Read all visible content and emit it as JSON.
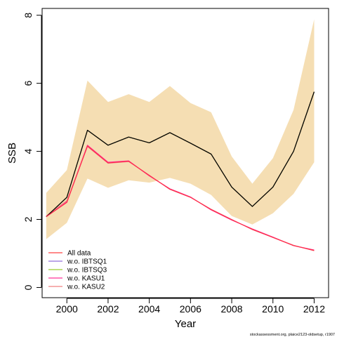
{
  "chart_data": {
    "type": "line",
    "xlabel": "Year",
    "ylabel": "SSB",
    "xlim": [
      1998.8,
      2012.7
    ],
    "ylim": [
      -0.3,
      8.2
    ],
    "x_ticks": [
      2000,
      2002,
      2004,
      2006,
      2008,
      2010,
      2012
    ],
    "y_ticks": [
      0,
      2,
      4,
      6,
      8
    ],
    "grid": false,
    "legend_position": "bottom-left",
    "footnote": "stockassessment.org, plaice2123-oldsetup, r1907",
    "x": [
      1999,
      2000,
      2001,
      2002,
      2003,
      2004,
      2005,
      2006,
      2007,
      2008,
      2009,
      2010,
      2011,
      2012
    ],
    "band": {
      "color": "#f5deb3",
      "lower": [
        1.42,
        1.9,
        3.2,
        2.93,
        3.15,
        3.08,
        3.22,
        3.05,
        2.72,
        2.1,
        1.85,
        2.18,
        2.75,
        3.68
      ],
      "upper": [
        2.78,
        3.45,
        6.08,
        5.45,
        5.68,
        5.45,
        5.92,
        5.42,
        5.15,
        3.85,
        3.05,
        3.8,
        5.22,
        7.88
      ]
    },
    "series": [
      {
        "name": "All data",
        "color": "#ff4545",
        "in_legend": true,
        "values": [
          2.08,
          2.65,
          4.62,
          4.18,
          4.42,
          4.25,
          4.55,
          4.24,
          3.92,
          2.95,
          2.38,
          2.95,
          4.0,
          5.75
        ]
      },
      {
        "name": "w.o. IBTSQ1",
        "color": "#9370db",
        "in_legend": true,
        "values": [
          2.08,
          2.65,
          4.62,
          4.18,
          4.42,
          4.25,
          4.55,
          4.24,
          3.92,
          2.95,
          2.38,
          2.95,
          4.0,
          5.75
        ]
      },
      {
        "name": "w.o. IBTSQ3",
        "color": "#9acd32",
        "in_legend": true,
        "values": [
          2.08,
          2.65,
          4.62,
          4.18,
          4.42,
          4.25,
          4.55,
          4.24,
          3.92,
          2.95,
          2.38,
          2.95,
          4.0,
          5.75
        ]
      },
      {
        "name": "w.o. KASU1",
        "color": "#ff3399",
        "in_legend": true,
        "values": [
          2.08,
          2.52,
          4.18,
          3.68,
          3.72,
          3.28,
          2.9,
          2.66,
          2.28,
          1.98,
          1.72,
          1.48,
          1.23,
          1.1
        ]
      },
      {
        "name": "w.o. KASU2",
        "color": "#f08080",
        "in_legend": true,
        "values": [
          2.1,
          2.55,
          4.14,
          3.65,
          3.7,
          3.3,
          2.88,
          2.65,
          2.3,
          2.0,
          1.7,
          1.47,
          1.24,
          1.08
        ]
      },
      {
        "name": "",
        "color": "#000000",
        "in_legend": false,
        "values": [
          2.08,
          2.65,
          4.62,
          4.18,
          4.42,
          4.25,
          4.55,
          4.24,
          3.92,
          2.95,
          2.38,
          2.95,
          4.0,
          5.75
        ]
      },
      {
        "name": "",
        "color": "#ff2a4a",
        "in_legend": false,
        "values": [
          2.08,
          2.5,
          4.16,
          3.66,
          3.71,
          3.29,
          2.89,
          2.65,
          2.29,
          1.99,
          1.71,
          1.47,
          1.23,
          1.09
        ]
      }
    ]
  }
}
